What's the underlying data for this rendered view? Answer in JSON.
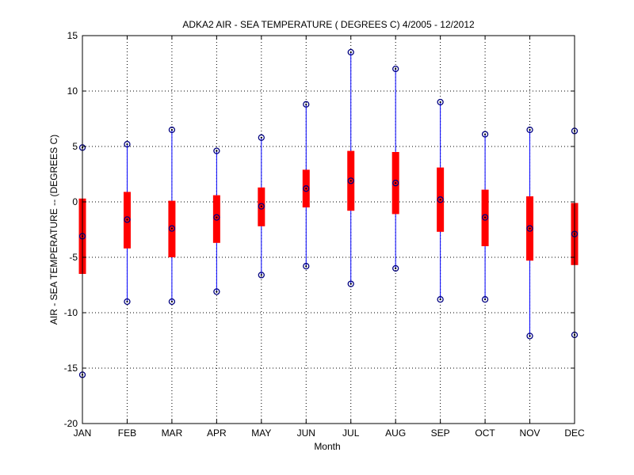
{
  "chart_data": {
    "type": "box",
    "title": "ADKA2  AIR - SEA TEMPERATURE ( DEGREES C) 4/2005 - 12/2012",
    "xlabel": "Month",
    "ylabel": "AIR - SEA TEMPERATURE -- (DEGREES C)",
    "ylim": [
      -20,
      15
    ],
    "yticks": [
      -20,
      -15,
      -10,
      -5,
      0,
      5,
      10,
      15
    ],
    "grid": true,
    "categories": [
      "JAN",
      "FEB",
      "MAR",
      "APR",
      "MAY",
      "JUN",
      "JUL",
      "AUG",
      "SEP",
      "OCT",
      "NOV",
      "DEC"
    ],
    "min": [
      -15.6,
      -9.0,
      -9.0,
      -8.1,
      -6.6,
      -5.8,
      -7.4,
      -6.0,
      -8.8,
      -8.8,
      -12.1,
      -12.0
    ],
    "q1": [
      -6.5,
      -4.2,
      -5.0,
      -3.7,
      -2.2,
      -0.5,
      -0.8,
      -1.1,
      -2.7,
      -4.0,
      -5.3,
      -5.7
    ],
    "median": [
      -3.1,
      -1.6,
      -2.4,
      -1.4,
      -0.4,
      1.2,
      1.9,
      1.7,
      0.2,
      -1.4,
      -2.4,
      -2.9
    ],
    "q3": [
      0.3,
      0.9,
      0.1,
      0.6,
      1.3,
      2.9,
      4.6,
      4.5,
      3.1,
      1.1,
      0.5,
      -0.1
    ],
    "max": [
      4.9,
      5.2,
      6.5,
      4.6,
      5.8,
      8.8,
      13.5,
      12.0,
      9.0,
      6.1,
      6.5,
      6.4
    ],
    "colors": {
      "box": "#ff0000",
      "whisker": "#0000ff",
      "marker": "#000080",
      "grid": "#000000"
    }
  }
}
